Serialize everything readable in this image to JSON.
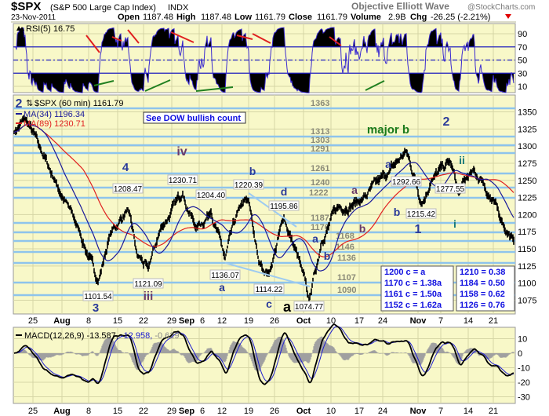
{
  "header": {
    "symbol": "$SPX",
    "name": "(S&P 500 Large Cap Index)",
    "exchange": "INDX",
    "date": "23-Nov-2011",
    "brand": "Objective Elliott Wave",
    "credit": "@StockCharts.com",
    "open_label": "Open",
    "open": "1187.48",
    "high_label": "High",
    "high": "1187.48",
    "low_label": "Low",
    "low": "1161.79",
    "close_label": "Close",
    "close": "1161.79",
    "volume_label": "Volume",
    "volume": "2.9B",
    "chg_label": "Chg",
    "chg": "-26.25 (-2.21%)",
    "chg_direction": "down"
  },
  "chart_data": [
    {
      "type": "line",
      "panel": "rsi",
      "legend": "RSI(5) 16.75",
      "yticks": [
        90,
        70,
        50,
        30,
        10
      ],
      "ylim": [
        0,
        100
      ],
      "bands": [
        70,
        50,
        30
      ],
      "trendlines": {
        "resistance_color": "#e02020",
        "support_color": "#208020"
      }
    },
    {
      "type": "line",
      "panel": "price",
      "title": "$SPX (60 min) 1161.79",
      "series": [
        {
          "name": "MA(34) 1196.34",
          "color": "#1a1a9a"
        },
        {
          "name": "MA(89) 1230.71",
          "color": "#e02020"
        }
      ],
      "price_color": "#000000",
      "yticks": [
        1350,
        1325,
        1300,
        1275,
        1250,
        1225,
        1200,
        1175,
        1150,
        1125,
        1100,
        1075
      ],
      "ylim": [
        1065,
        1373
      ],
      "key_points": [
        [
          "Jul 21",
          1320
        ],
        [
          "Jul 25",
          1340
        ],
        [
          "Jul 28",
          1300
        ],
        [
          "Aug 2",
          1250
        ],
        [
          "Aug 5",
          1180
        ],
        [
          "Aug 9",
          1101.54
        ],
        [
          "Aug 11",
          1170
        ],
        [
          "Aug 16",
          1208.47
        ],
        [
          "Aug 18",
          1140
        ],
        [
          "Aug 22",
          1121.09
        ],
        [
          "Aug 26",
          1180
        ],
        [
          "Aug 31",
          1230.71
        ],
        [
          "Sep 6",
          1180
        ],
        [
          "Sep 8",
          1204.4
        ],
        [
          "Sep 12",
          1136.07
        ],
        [
          "Sep 15",
          1210
        ],
        [
          "Sep 20",
          1220.39
        ],
        [
          "Sep 22",
          1130
        ],
        [
          "Sep 26",
          1114.22
        ],
        [
          "Sep 29",
          1195.86
        ],
        [
          "Oct 3",
          1120
        ],
        [
          "Oct 4",
          1074.77
        ],
        [
          "Oct 7",
          1160
        ],
        [
          "Oct 12",
          1210
        ],
        [
          "Oct 18",
          1220
        ],
        [
          "Oct 24",
          1260
        ],
        [
          "Oct 27",
          1292.66
        ],
        [
          "Oct 31",
          1250
        ],
        [
          "Nov 1",
          1215.42
        ],
        [
          "Nov 4",
          1250
        ],
        [
          "Nov 8",
          1277.55
        ],
        [
          "Nov 10",
          1230
        ],
        [
          "Nov 14",
          1262
        ],
        [
          "Nov 17",
          1250
        ],
        [
          "Nov 21",
          1190
        ],
        [
          "Nov 23",
          1161.79
        ]
      ],
      "levels": [
        "1363",
        "1313",
        "1303",
        "1291",
        "1261",
        "1240",
        "1222",
        "1187",
        "1176",
        "1168",
        "1146",
        "1136",
        "1107",
        "1090"
      ],
      "price_labels": [
        "1101.54",
        "1208.47",
        "1121.09",
        "1230.71",
        "1204.40",
        "1136.07",
        "1220.39",
        "1114.22",
        "1195.86",
        "1074.77",
        "1292.66",
        "1215.42",
        "1277.55"
      ],
      "wave_labels": [
        "2",
        "3",
        "4",
        "iii",
        "iv",
        "a",
        "b",
        "c",
        "d",
        "a",
        "a",
        "b",
        "a",
        "b",
        "a",
        "b",
        "1",
        "major b",
        "2",
        "ii",
        "i"
      ],
      "note": "See DOW bullish count",
      "targets_box_1": [
        "1200 c = a",
        "1170 c = 1.38a",
        "1161 c = 1.50a",
        "1152 c = 1.62a"
      ],
      "targets_box_2": [
        "1210 = 0.38",
        "1184 = 0.50",
        "1158 = 0.62",
        "1126 = 0.76"
      ],
      "level_line_color": "#8ec4ec"
    },
    {
      "type": "line",
      "panel": "macd",
      "legend": [
        "MACD(12,26,9) -13.587,",
        " -12.958,",
        " -0.629"
      ],
      "series": [
        {
          "name": "MACD",
          "color": "#000000"
        },
        {
          "name": "Signal",
          "color": "#2020d0"
        },
        {
          "name": "Histogram",
          "color": "#a0a0a0"
        }
      ],
      "yticks": [
        10,
        0,
        -10,
        -20,
        -30
      ],
      "ylim": [
        -35,
        17
      ]
    }
  ],
  "xaxis": {
    "ticks": [
      "25",
      "Aug",
      "8",
      "15",
      "22",
      "29",
      "Sep",
      "6",
      "12",
      "19",
      "26",
      "Oct",
      "10",
      "17",
      "24",
      "Nov",
      "7",
      "14",
      "21"
    ],
    "bold": [
      "Aug",
      "Sep",
      "Oct",
      "Nov"
    ]
  },
  "colors": {
    "panel_bg": "#f8f8c8",
    "grid": "#d6d6a6",
    "wave_blue": "#2a3a9a",
    "wave_purple": "#6a3a6a",
    "wave_green": "#1a7a1a",
    "wave_teal": "#1a7a7a",
    "target_text": "#1010e0"
  }
}
